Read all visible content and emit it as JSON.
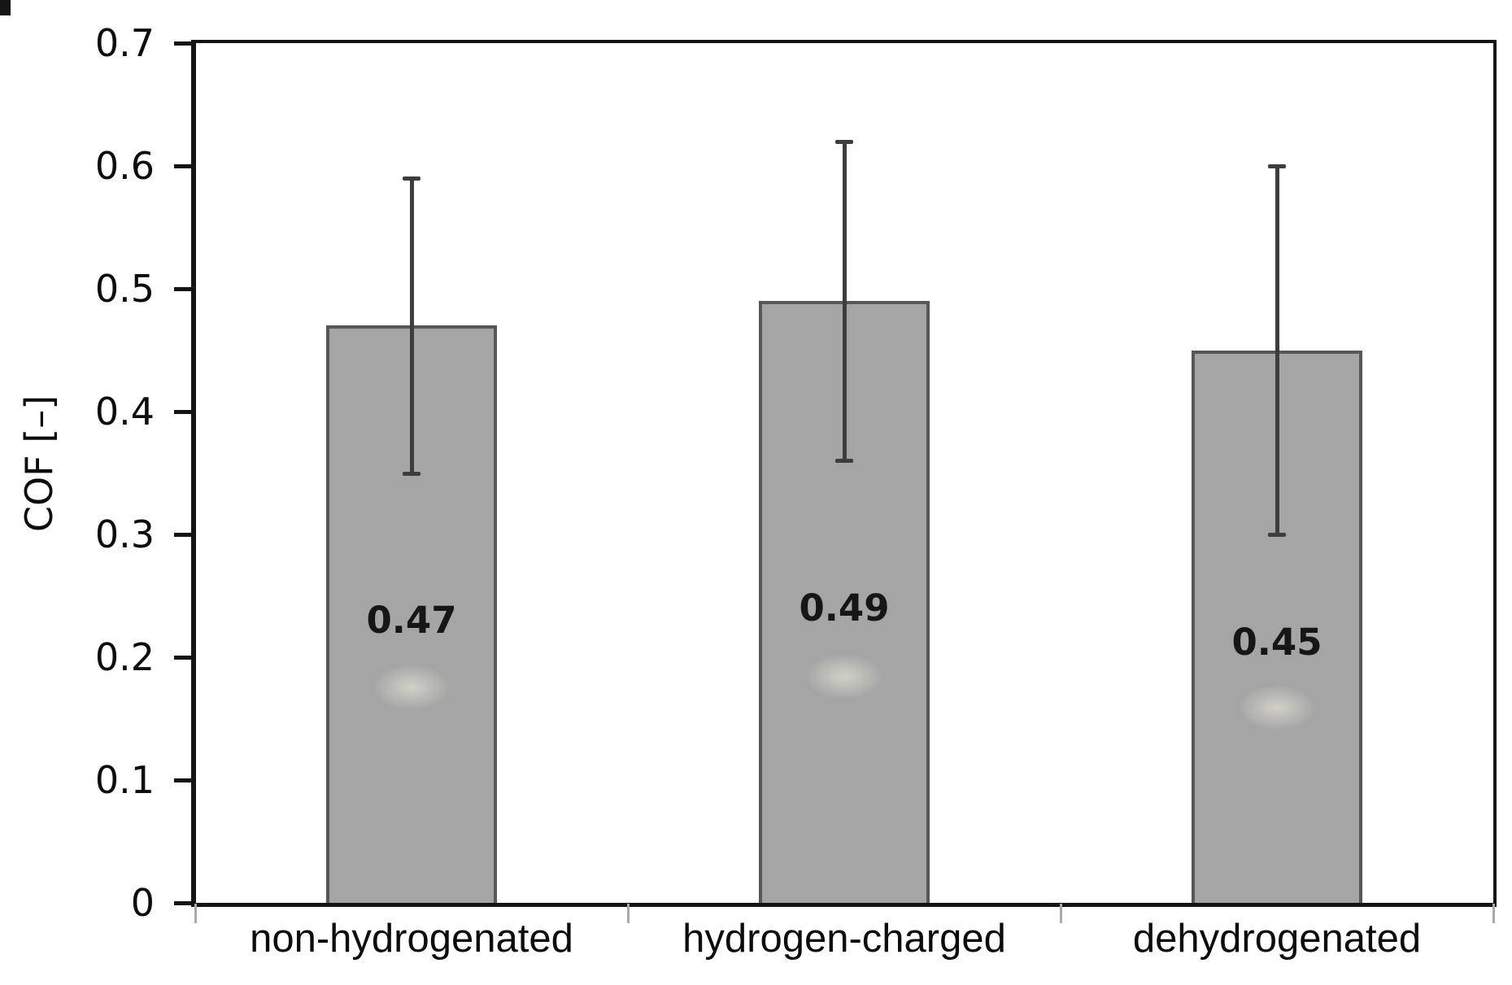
{
  "figure": {
    "background": "#ffffff"
  },
  "chart_data": {
    "type": "bar",
    "title": "",
    "ylabel": "COF [–]",
    "xlabel": "",
    "ylim": [
      0,
      0.7
    ],
    "ytick_step": 0.1,
    "ytick_labels": [
      "0",
      "0.1",
      "0.2",
      "0.3",
      "0.4",
      "0.5",
      "0.6",
      "0.7"
    ],
    "categories": [
      "non-hydrogenated",
      "hydrogen-charged",
      "dehydrogenated"
    ],
    "values": [
      0.47,
      0.49,
      0.45
    ],
    "value_labels": [
      "0.47",
      "0.49",
      "0.45"
    ],
    "error_plus": [
      0.12,
      0.13,
      0.15
    ],
    "error_minus": [
      0.12,
      0.13,
      0.15
    ],
    "error_whisker_tops": [
      0.59,
      0.62,
      0.6
    ],
    "error_whisker_bottoms": [
      0.35,
      0.36,
      0.3
    ],
    "grid": "off",
    "legend": "none",
    "bar_color": "#a5a5a5",
    "bar_border_color": "#575757",
    "error_bar_color": "#3d3d3d",
    "axis_color": "#141414",
    "text_color": "#111111"
  }
}
